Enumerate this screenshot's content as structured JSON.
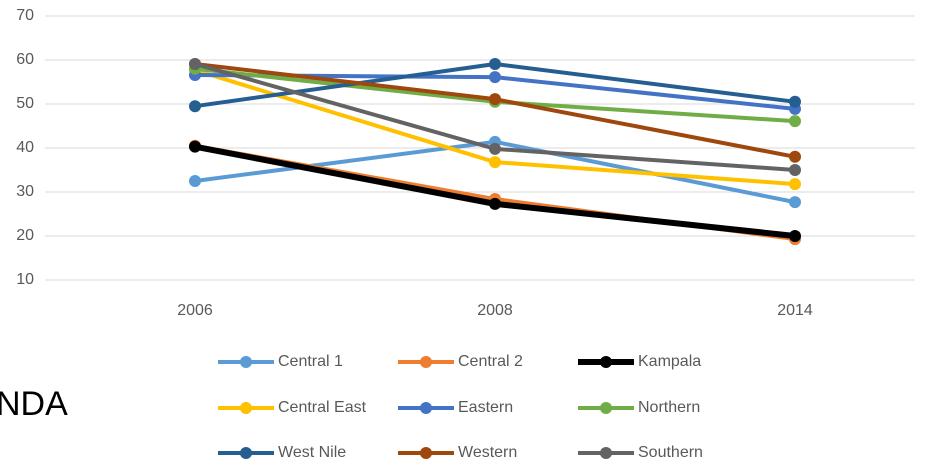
{
  "chart_data": {
    "type": "line",
    "categories": [
      "2006",
      "2008",
      "2014"
    ],
    "series": [
      {
        "name": "Central 1",
        "color": "#5b9bd5",
        "line_width": 4,
        "values": [
          32.5,
          41.4,
          27.7
        ]
      },
      {
        "name": "Central 2",
        "color": "#ed7d31",
        "line_width": 4,
        "values": [
          40.5,
          28.4,
          19.3
        ]
      },
      {
        "name": "Kampala",
        "color": "#000000",
        "line_width": 6,
        "values": [
          40.3,
          27.3,
          20
        ]
      },
      {
        "name": "Central East",
        "color": "#ffc000",
        "line_width": 4,
        "values": [
          57.7,
          36.8,
          31.8
        ]
      },
      {
        "name": "Eastern",
        "color": "#4472c4",
        "line_width": 4,
        "values": [
          56.6,
          56.1,
          48.9
        ]
      },
      {
        "name": "Northern",
        "color": "#70ad47",
        "line_width": 4,
        "values": [
          58,
          50.5,
          46.1
        ]
      },
      {
        "name": "West Nile",
        "color": "#255e91",
        "line_width": 4,
        "values": [
          49.5,
          59.1,
          50.5
        ]
      },
      {
        "name": "Western",
        "color": "#9e480e",
        "line_width": 4,
        "values": [
          59.1,
          51.1,
          38
        ]
      },
      {
        "name": "Southern",
        "color": "#636363",
        "line_width": 4,
        "values": [
          59.1,
          39.8,
          35
        ]
      }
    ],
    "ylim": [
      10,
      70
    ],
    "yticks": [
      10,
      20,
      30,
      40,
      50,
      60,
      70
    ],
    "grid": true,
    "legend": "bottom",
    "annotation": "NDA"
  }
}
